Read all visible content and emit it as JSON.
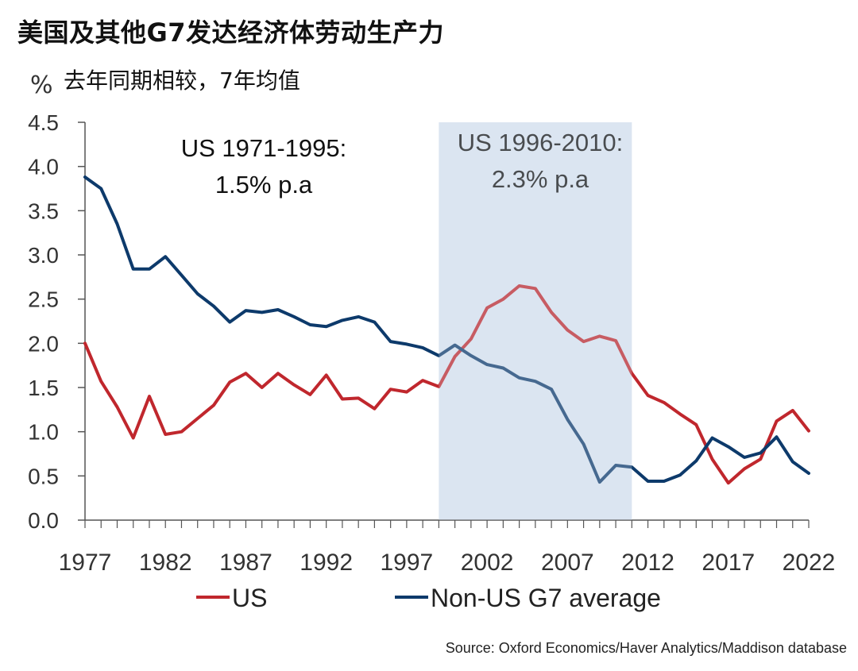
{
  "title": "美国及其他G7发达经济体劳动生产力",
  "subtitle": "去年同期相较，7年均值",
  "unit": "%",
  "source": "Source: Oxford Economics/Haver Analytics/Maddison database",
  "colors": {
    "us": "#c0272d",
    "nonus": "#0d3a6b",
    "shade": "#dbe5f1",
    "axis": "#555555"
  },
  "chart_data": {
    "type": "line",
    "ylim": [
      0,
      4.5
    ],
    "yticks": [
      "0.0",
      "0.5",
      "1.0",
      "1.5",
      "2.0",
      "2.5",
      "3.0",
      "3.5",
      "4.0",
      "4.5"
    ],
    "xlim": [
      1977,
      2022
    ],
    "xticks": [
      "1977",
      "1982",
      "1987",
      "1992",
      "1997",
      "2002",
      "2007",
      "2012",
      "2017",
      "2022"
    ],
    "shaded_range": [
      1999,
      2011
    ],
    "annotations": [
      {
        "line1": "US 1971-1995:",
        "line2": "1.5% p.a"
      },
      {
        "line1": "US 1996-2010:",
        "line2": "2.3% p.a"
      }
    ],
    "x": [
      1977,
      1978,
      1979,
      1980,
      1981,
      1982,
      1983,
      1984,
      1985,
      1986,
      1987,
      1988,
      1989,
      1990,
      1991,
      1992,
      1993,
      1994,
      1995,
      1996,
      1997,
      1998,
      1999,
      2000,
      2001,
      2002,
      2003,
      2004,
      2005,
      2006,
      2007,
      2008,
      2009,
      2010,
      2011,
      2012,
      2013,
      2014,
      2015,
      2016,
      2017,
      2018,
      2019,
      2020,
      2021,
      2022
    ],
    "series": [
      {
        "name": "US",
        "values": [
          2.0,
          1.57,
          1.28,
          0.93,
          1.4,
          0.97,
          1.0,
          1.15,
          1.3,
          1.56,
          1.66,
          1.5,
          1.66,
          1.53,
          1.42,
          1.64,
          1.37,
          1.38,
          1.26,
          1.48,
          1.45,
          1.58,
          1.51,
          1.85,
          2.05,
          2.4,
          2.5,
          2.65,
          2.62,
          2.35,
          2.15,
          2.02,
          2.08,
          2.03,
          1.66,
          1.41,
          1.33,
          1.2,
          1.08,
          0.69,
          0.42,
          0.58,
          0.69,
          1.12,
          1.24,
          1.01
        ]
      },
      {
        "name": "Non-US G7 average",
        "values": [
          3.88,
          3.75,
          3.35,
          2.84,
          2.84,
          2.98,
          2.77,
          2.56,
          2.42,
          2.24,
          2.37,
          2.35,
          2.38,
          2.3,
          2.21,
          2.19,
          2.26,
          2.3,
          2.24,
          2.02,
          1.99,
          1.95,
          1.86,
          1.98,
          1.86,
          1.76,
          1.72,
          1.61,
          1.57,
          1.48,
          1.14,
          0.86,
          0.43,
          0.62,
          0.6,
          0.44,
          0.44,
          0.51,
          0.67,
          0.93,
          0.83,
          0.71,
          0.76,
          0.94,
          0.66,
          0.53
        ]
      }
    ]
  }
}
